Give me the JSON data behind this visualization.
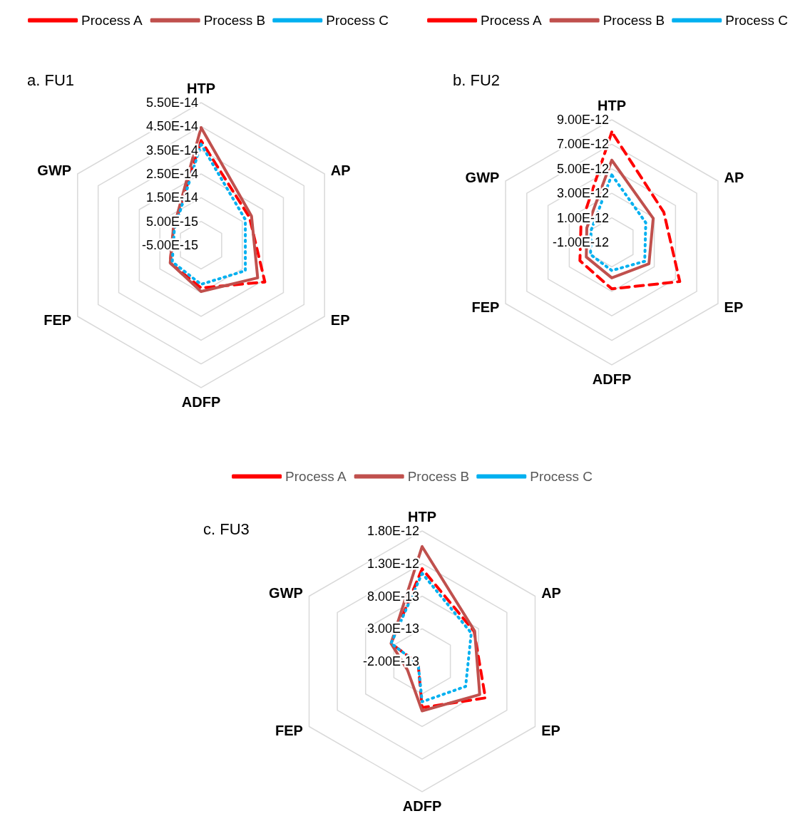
{
  "chart_data": [
    {
      "type": "radar",
      "title": "a. FU1",
      "categories": [
        "HTP",
        "AP",
        "EP",
        "ADFP",
        "FEP",
        "GWP"
      ],
      "series": [
        {
          "name": "Process A",
          "color": "#ff0000",
          "line_style": "dashed",
          "values": [
            3.9e-14,
            1.85e-14,
            2.6e-14,
            1.3e-14,
            1e-14,
            8.5e-15
          ]
        },
        {
          "name": "Process B",
          "color": "#c0504d",
          "line_style": "solid",
          "values": [
            4.45e-14,
            1.95e-14,
            2.25e-14,
            1.45e-14,
            1e-14,
            8.5e-15
          ]
        },
        {
          "name": "Process C",
          "color": "#00b0f0",
          "line_style": "dotted",
          "values": [
            3.75e-14,
            1.65e-14,
            1.65e-14,
            1.15e-14,
            9e-15,
            8e-15
          ]
        }
      ],
      "ylim": [
        -5e-15,
        5.5e-14
      ],
      "yticks": [
        {
          "value": -5e-15,
          "label": "-5.00E-15"
        },
        {
          "value": 5e-15,
          "label": "5.00E-15"
        },
        {
          "value": 1.5e-14,
          "label": "1.50E-14"
        },
        {
          "value": 2.5e-14,
          "label": "2.50E-14"
        },
        {
          "value": 3.5e-14,
          "label": "3.50E-14"
        },
        {
          "value": 4.5e-14,
          "label": "4.50E-14"
        },
        {
          "value": 5.5e-14,
          "label": "5.50E-14"
        }
      ],
      "legend": "top",
      "grid": true,
      "marker": "none"
    },
    {
      "type": "radar",
      "title": "b. FU2",
      "categories": [
        "HTP",
        "AP",
        "EP",
        "ADFP",
        "FEP",
        "GWP"
      ],
      "series": [
        {
          "name": "Process A",
          "color": "#ff0000",
          "line_style": "dashed",
          "values": [
            8e-12,
            3.9e-12,
            5.4e-12,
            2.8e-12,
            2e-12,
            1.9e-12
          ]
        },
        {
          "name": "Process B",
          "color": "#c0504d",
          "line_style": "solid",
          "values": [
            5.7e-12,
            2.9e-12,
            2.5e-12,
            1.9e-12,
            1.4e-12,
            1.35e-12
          ]
        },
        {
          "name": "Process C",
          "color": "#00b0f0",
          "line_style": "dotted",
          "values": [
            4.5e-12,
            2.2e-12,
            2.1e-12,
            1.3e-12,
            1e-12,
            9.5e-13
          ]
        }
      ],
      "ylim": [
        -1e-12,
        9e-12
      ],
      "yticks": [
        {
          "value": -1e-12,
          "label": "-1.00E-12"
        },
        {
          "value": 1e-12,
          "label": "1.00E-12"
        },
        {
          "value": 3e-12,
          "label": "3.00E-12"
        },
        {
          "value": 5e-12,
          "label": "5.00E-12"
        },
        {
          "value": 7e-12,
          "label": "7.00E-12"
        },
        {
          "value": 9e-12,
          "label": "9.00E-12"
        }
      ],
      "legend": "top",
      "grid": true,
      "marker": "none"
    },
    {
      "type": "radar",
      "title": "c. FU3",
      "categories": [
        "HTP",
        "AP",
        "EP",
        "ADFP",
        "FEP",
        "GWP"
      ],
      "series": [
        {
          "name": "Process A",
          "color": "#ff0000",
          "line_style": "dashed",
          "values": [
            1.22e-12,
            7.2e-13,
            9.2e-13,
            5.1e-13,
            -1.3e-13,
            3.5e-13
          ]
        },
        {
          "name": "Process B",
          "color": "#c0504d",
          "line_style": "solid",
          "values": [
            1.56e-12,
            7.3e-13,
            8.2e-13,
            5.6e-13,
            6e-14,
            3.5e-13
          ]
        },
        {
          "name": "Process C",
          "color": "#00b0f0",
          "line_style": "dotted",
          "values": [
            1.15e-12,
            6.7e-13,
            5.7e-13,
            4.2e-13,
            -1.3e-13,
            3.5e-13
          ]
        }
      ],
      "ylim": [
        -2e-13,
        1.8e-12
      ],
      "yticks": [
        {
          "value": -2e-13,
          "label": "-2.00E-13"
        },
        {
          "value": 3e-13,
          "label": "3.00E-13"
        },
        {
          "value": 8e-13,
          "label": "8.00E-13"
        },
        {
          "value": 1.3e-12,
          "label": "1.30E-12"
        },
        {
          "value": 1.8e-12,
          "label": "1.80E-12"
        }
      ],
      "legend": "top",
      "grid": true,
      "marker": "none"
    }
  ]
}
